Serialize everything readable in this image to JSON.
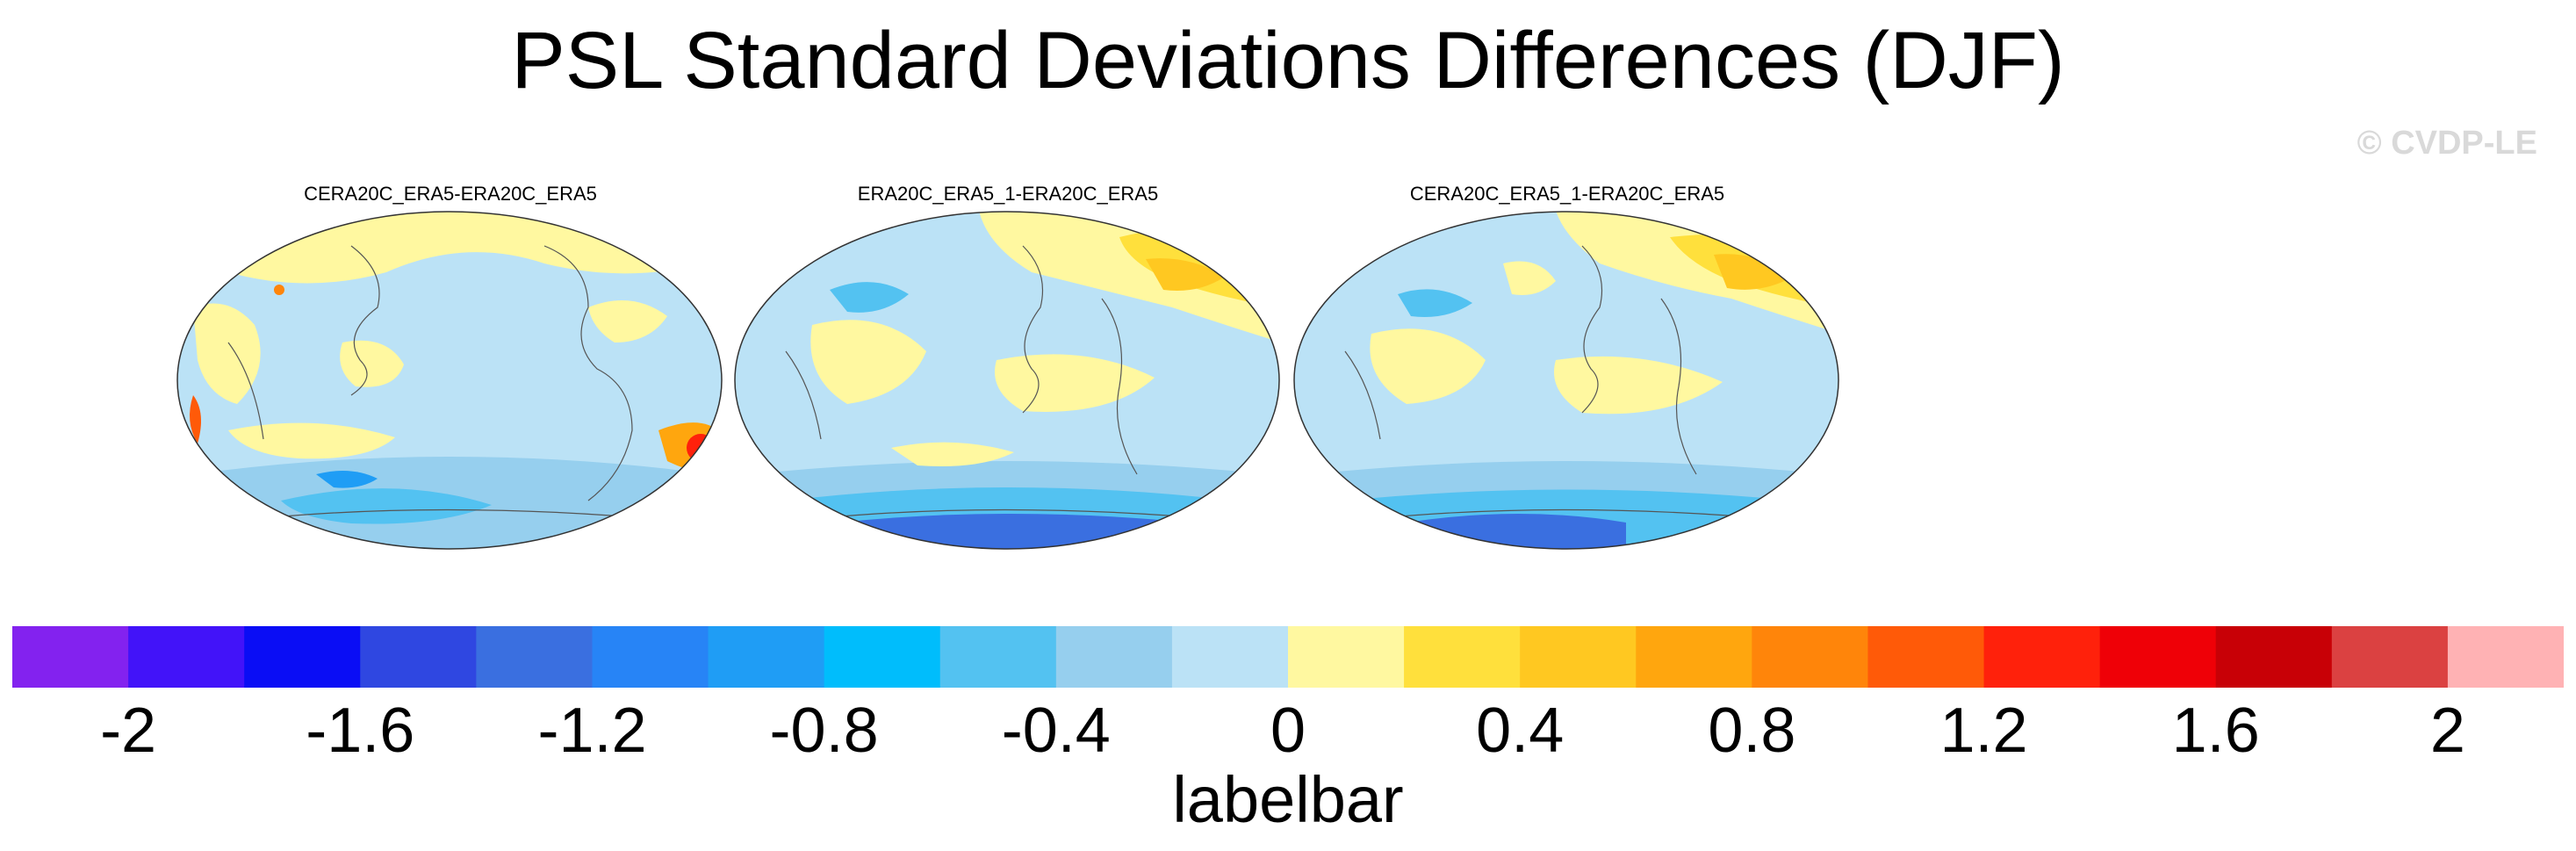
{
  "title": "PSL Standard Deviations Differences (DJF)",
  "watermark": "© CVDP-LE",
  "panels": [
    {
      "title": "CERA20C_ERA5-ERA20C_ERA5"
    },
    {
      "title": "ERA20C_ERA5_1-ERA20C_ERA5"
    },
    {
      "title": "CERA20C_ERA5_1-ERA20C_ERA5"
    }
  ],
  "colorbar": {
    "caption": "labelbar",
    "colors": [
      "#8322ef",
      "#4213f9",
      "#0a0df5",
      "#2f47e1",
      "#3a6fe0",
      "#2784f6",
      "#1f9df5",
      "#00bdfc",
      "#53c2f1",
      "#96cfee",
      "#bbe2f6",
      "#fff8a0",
      "#ffe03c",
      "#ffc821",
      "#ffa60e",
      "#ff850a",
      "#ff5a08",
      "#ff210b",
      "#ef0007",
      "#c80006",
      "#db4141",
      "#ffb2b4"
    ],
    "tick_labels": [
      "-2",
      "-1.6",
      "-1.2",
      "-0.8",
      "-0.4",
      "0",
      "0.4",
      "0.8",
      "1.2",
      "1.6",
      "2"
    ]
  }
}
